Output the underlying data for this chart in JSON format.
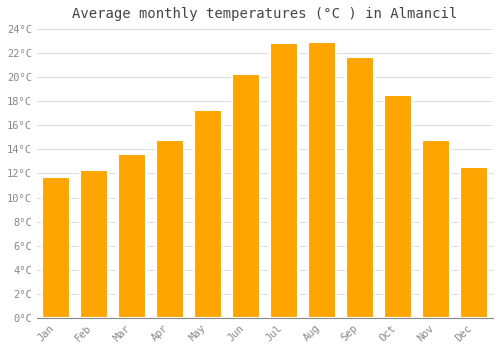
{
  "months": [
    "Jan",
    "Feb",
    "Mar",
    "Apr",
    "May",
    "Jun",
    "Jul",
    "Aug",
    "Sep",
    "Oct",
    "Nov",
    "Dec"
  ],
  "values": [
    11.7,
    12.3,
    13.6,
    14.8,
    17.3,
    20.3,
    22.8,
    22.9,
    21.7,
    18.5,
    14.8,
    12.5
  ],
  "bar_color": "#FFA500",
  "bar_edge_color": "#FFFFFF",
  "background_color": "#FFFFFF",
  "grid_color": "#CCCCCC",
  "title": "Average monthly temperatures (°C ) in Almancil",
  "title_fontsize": 10,
  "tick_label_color": "#888888",
  "title_color": "#444444",
  "ylim": [
    0,
    24
  ],
  "ytick_step": 2,
  "font_family": "monospace"
}
